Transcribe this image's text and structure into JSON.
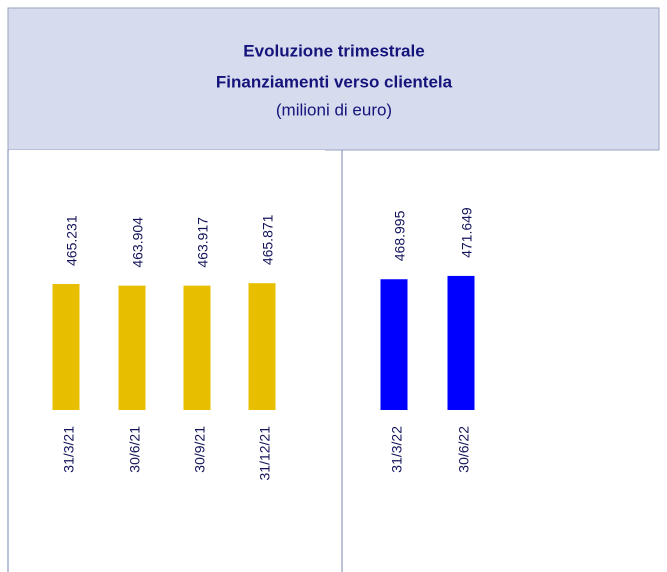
{
  "chart_data": {
    "type": "bar",
    "title": "Evoluzione trimestrale",
    "subtitle": "Finanziamenti verso clientela",
    "unit_label": "(milioni di euro)",
    "categories": [
      "31/3/21",
      "30/6/21",
      "30/9/21",
      "31/12/21",
      "31/3/22",
      "30/6/22"
    ],
    "values": [
      465231,
      463904,
      463917,
      465871,
      468995,
      471649
    ],
    "value_labels": [
      "465.231",
      "463.904",
      "463.917",
      "465.871",
      "468.995",
      "471.649"
    ],
    "colors": [
      "#e8bf00",
      "#e8bf00",
      "#e8bf00",
      "#e8bf00",
      "#0000ff",
      "#0000ff"
    ],
    "ylim": [
      365000,
      475000
    ]
  }
}
